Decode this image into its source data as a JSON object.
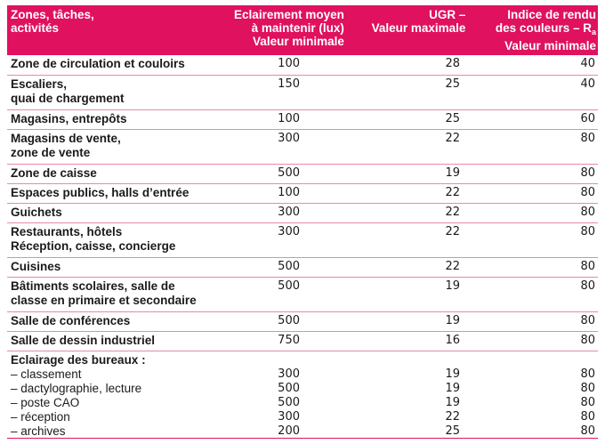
{
  "header": {
    "col0": [
      "Zones, tâches,",
      "activités"
    ],
    "col1": [
      "Eclairement moyen",
      "à maintenir (lux)",
      "Valeur minimale"
    ],
    "col2": [
      "UGR –",
      "Valeur maximale"
    ],
    "col3_line1": "Indice de rendu",
    "col3_line2": "des couleurs – R",
    "col3_sub": "a",
    "col3_line3": "Valeur minimale"
  },
  "rows": [
    {
      "label": [
        "Zone de circulation et couloirs"
      ],
      "lux": "100",
      "ugr": "28",
      "ra": "40"
    },
    {
      "label": [
        "Escaliers,",
        "quai de chargement"
      ],
      "lux": "150",
      "ugr": "25",
      "ra": "40"
    },
    {
      "label": [
        "Magasins, entrepôts"
      ],
      "lux": "100",
      "ugr": "25",
      "ra": "60"
    },
    {
      "label": [
        "Magasins de vente,",
        "zone de vente"
      ],
      "lux": "300",
      "ugr": "22",
      "ra": "80"
    },
    {
      "label": [
        "Zone de caisse"
      ],
      "lux": "500",
      "ugr": "19",
      "ra": "80"
    },
    {
      "label": [
        "Espaces publics, halls d’entrée"
      ],
      "lux": "100",
      "ugr": "22",
      "ra": "80"
    },
    {
      "label": [
        "Guichets"
      ],
      "lux": "300",
      "ugr": "22",
      "ra": "80"
    },
    {
      "label": [
        "Restaurants, hôtels",
        "Réception, caisse, concierge"
      ],
      "lux": "300",
      "ugr": "22",
      "ra": "80"
    },
    {
      "label": [
        "Cuisines"
      ],
      "lux": "500",
      "ugr": "22",
      "ra": "80"
    },
    {
      "label": [
        "Bâtiments scolaires, salle de",
        "classe en primaire et secondaire"
      ],
      "lux": "500",
      "ugr": "19",
      "ra": "80"
    },
    {
      "label": [
        "Salle de conférences"
      ],
      "lux": "500",
      "ugr": "19",
      "ra": "80"
    },
    {
      "label": [
        "Salle de dessin industriel"
      ],
      "lux": "750",
      "ugr": "16",
      "ra": "80"
    }
  ],
  "offices": {
    "title": "Eclairage des bureaux :",
    "items": [
      {
        "label": "– classement",
        "lux": "300",
        "ugr": "19",
        "ra": "80"
      },
      {
        "label": "– dactylographie, lecture",
        "lux": "500",
        "ugr": "19",
        "ra": "80"
      },
      {
        "label": "– poste CAO",
        "lux": "500",
        "ugr": "19",
        "ra": "80"
      },
      {
        "label": "– réception",
        "lux": "300",
        "ugr": "22",
        "ra": "80"
      },
      {
        "label": "– archives",
        "lux": "200",
        "ugr": "25",
        "ra": "80"
      }
    ]
  },
  "colors": {
    "header_bg": "#e0115f",
    "rule": "#e48ab0"
  }
}
